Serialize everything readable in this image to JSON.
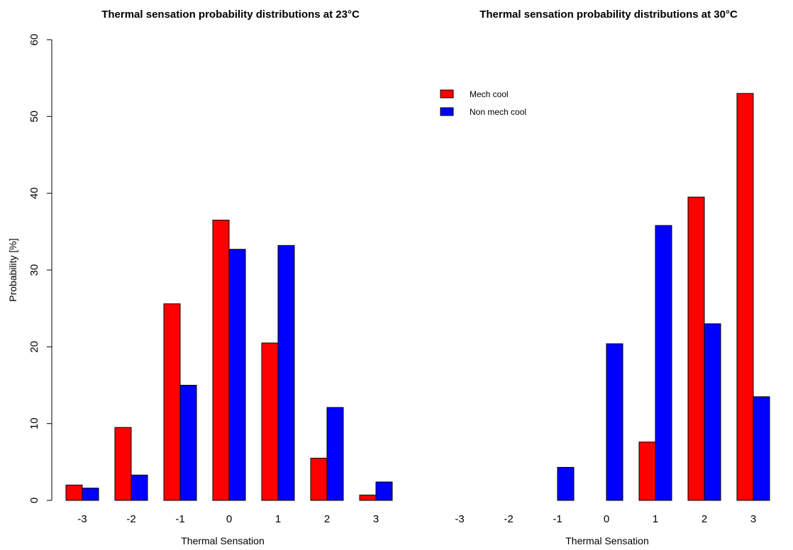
{
  "colors": {
    "mech": "#ff0000",
    "nonmech": "#0000ff"
  },
  "chart_data": [
    {
      "type": "bar",
      "title": "Thermal sensation probability distributions at 23°C",
      "xlabel": "Thermal Sensation",
      "ylabel": "Probability [%]",
      "ylim": [
        0,
        60
      ],
      "yticks": [
        "0",
        "10",
        "20",
        "30",
        "40",
        "50",
        "60"
      ],
      "categories": [
        "-3",
        "-2",
        "-1",
        "0",
        "1",
        "2",
        "3"
      ],
      "series": [
        {
          "name": "Mech cool",
          "color": "#ff0000",
          "values": [
            2.0,
            9.5,
            25.6,
            36.5,
            20.5,
            5.5,
            0.7
          ]
        },
        {
          "name": "Non mech cool",
          "color": "#0000ff",
          "values": [
            1.6,
            3.3,
            15.0,
            32.7,
            33.2,
            12.1,
            2.4
          ]
        }
      ]
    },
    {
      "type": "bar",
      "title": "Thermal sensation probability distributions at 30°C",
      "xlabel": "Thermal Sensation",
      "ylabel": "",
      "ylim": [
        0,
        60
      ],
      "categories": [
        "-3",
        "-2",
        "-1",
        "0",
        "1",
        "2",
        "3"
      ],
      "legend_position": "top",
      "series": [
        {
          "name": "Mech cool",
          "color": "#ff0000",
          "values": [
            0,
            0,
            0,
            0,
            7.6,
            39.5,
            53.0
          ]
        },
        {
          "name": "Non mech cool",
          "color": "#0000ff",
          "values": [
            0,
            0,
            4.3,
            20.4,
            35.8,
            23.0,
            13.5
          ]
        }
      ]
    }
  ]
}
